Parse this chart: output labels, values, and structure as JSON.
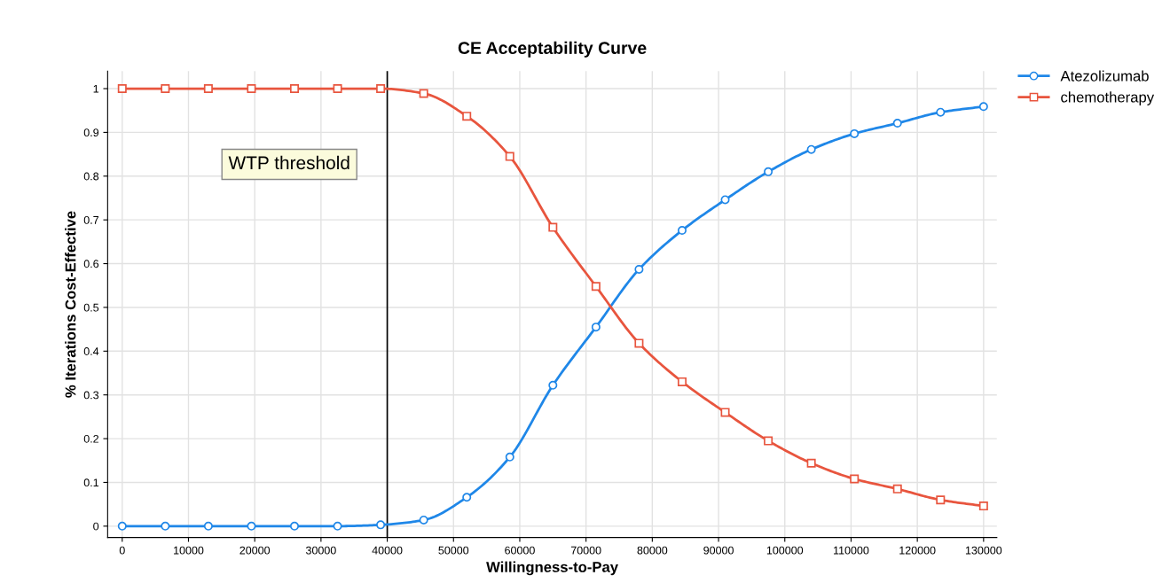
{
  "chart_data": {
    "type": "line",
    "title": "CE Acceptability Curve",
    "xlabel": "Willingness-to-Pay",
    "ylabel": "% Iterations Cost-Effective",
    "x": [
      0,
      6500,
      13000,
      19500,
      26000,
      32500,
      39000,
      45500,
      52000,
      58500,
      65000,
      71500,
      78000,
      84500,
      91000,
      97500,
      104000,
      110500,
      117000,
      123500,
      130000
    ],
    "series": [
      {
        "name": "Atezolizumab",
        "color": "#1f87e8",
        "marker": "circle",
        "values": [
          0,
          0,
          0,
          0,
          0,
          0,
          0.003,
          0.014,
          0.066,
          0.158,
          0.322,
          0.455,
          0.587,
          0.676,
          0.746,
          0.81,
          0.861,
          0.897,
          0.921,
          0.946,
          0.959
        ]
      },
      {
        "name": "chemotherapy",
        "color": "#e8553e",
        "marker": "square",
        "values": [
          1,
          1,
          1,
          1,
          1,
          1,
          1,
          0.989,
          0.937,
          0.845,
          0.683,
          0.548,
          0.418,
          0.33,
          0.26,
          0.195,
          0.144,
          0.108,
          0.085,
          0.06,
          0.046
        ]
      }
    ],
    "xlim": [
      -2200,
      132000
    ],
    "xticks": [
      0,
      10000,
      20000,
      30000,
      40000,
      50000,
      60000,
      70000,
      80000,
      90000,
      100000,
      110000,
      120000,
      130000
    ],
    "ylim": [
      -0.026,
      1.04
    ],
    "yticks": [
      0,
      0.1,
      0.2,
      0.3,
      0.4,
      0.5,
      0.6,
      0.7,
      0.8,
      0.9,
      1
    ],
    "ref_lines": [
      {
        "axis": "x",
        "value": 40000,
        "label": "WTP threshold",
        "color": "#000000"
      }
    ],
    "grid": true,
    "legend": "top right",
    "line_style": "solid"
  }
}
